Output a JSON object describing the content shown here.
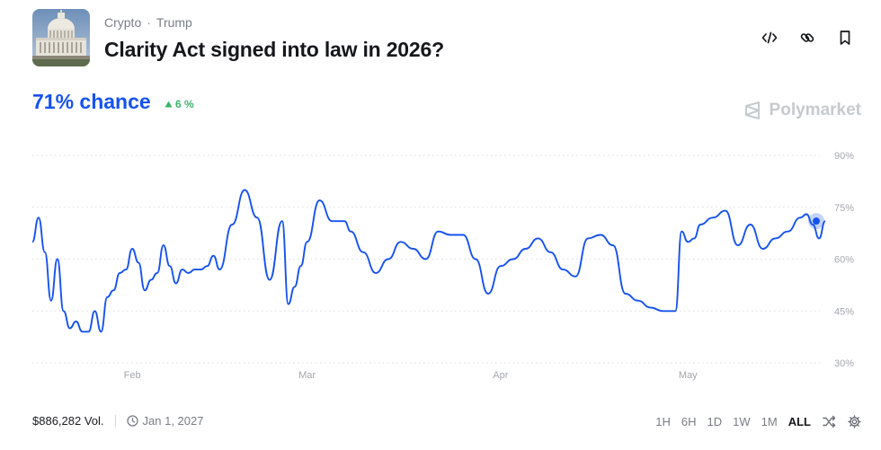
{
  "market": {
    "category": "Crypto",
    "subcategory": "Trump",
    "title": "Clarity Act signed into law in 2026?"
  },
  "odds": {
    "chance_text": "71% chance",
    "delta_text": "6 %",
    "delta_direction": "up"
  },
  "brand": {
    "name": "Polymarket"
  },
  "footer": {
    "volume": "$886,282 Vol.",
    "end_date": "Jan 1, 2027"
  },
  "ranges": [
    "1H",
    "6H",
    "1D",
    "1W",
    "1M",
    "ALL"
  ],
  "active_range": "ALL",
  "colors": {
    "line": "#1652f0",
    "up": "#3db468",
    "grid": "#dcdde0",
    "tick": "#a4a7ad"
  },
  "icons": [
    "embed-icon",
    "link-icon",
    "bookmark-icon",
    "shuffle-icon",
    "settings-icon",
    "clock-icon",
    "triangle-up-icon"
  ],
  "chart_data": {
    "type": "line",
    "x_tick_labels": [
      "Feb",
      "Mar",
      "Apr",
      "May"
    ],
    "y_tick_labels": [
      "90%",
      "75%",
      "60%",
      "45%",
      "30%"
    ],
    "y_ticks": [
      90,
      75,
      60,
      45,
      30
    ],
    "ylim": [
      25,
      95
    ],
    "x_range": [
      "2025-01-16",
      "2025-05-23"
    ],
    "grid": true,
    "series": [
      {
        "color": "#1652f0",
        "x": [
          "2025-01-16",
          "2025-01-17",
          "2025-01-18",
          "2025-01-19",
          "2025-01-20",
          "2025-01-21",
          "2025-01-22",
          "2025-01-23",
          "2025-01-24",
          "2025-01-25",
          "2025-01-26",
          "2025-01-27",
          "2025-01-28",
          "2025-01-29",
          "2025-01-30",
          "2025-01-31",
          "2025-02-01",
          "2025-02-02",
          "2025-02-03",
          "2025-02-04",
          "2025-02-05",
          "2025-02-06",
          "2025-02-07",
          "2025-02-08",
          "2025-02-09",
          "2025-02-10",
          "2025-02-11",
          "2025-02-12",
          "2025-02-13",
          "2025-02-14",
          "2025-02-15",
          "2025-02-17",
          "2025-02-19",
          "2025-02-21",
          "2025-02-23",
          "2025-02-25",
          "2025-02-26",
          "2025-02-27",
          "2025-02-28",
          "2025-03-01",
          "2025-03-03",
          "2025-03-05",
          "2025-03-07",
          "2025-03-08",
          "2025-03-10",
          "2025-03-12",
          "2025-03-14",
          "2025-03-16",
          "2025-03-18",
          "2025-03-20",
          "2025-03-22",
          "2025-03-24",
          "2025-03-26",
          "2025-03-28",
          "2025-03-30",
          "2025-04-01",
          "2025-04-03",
          "2025-04-05",
          "2025-04-07",
          "2025-04-09",
          "2025-04-11",
          "2025-04-13",
          "2025-04-15",
          "2025-04-17",
          "2025-04-19",
          "2025-04-21",
          "2025-04-23",
          "2025-04-25",
          "2025-04-27",
          "2025-04-29",
          "2025-04-30",
          "2025-05-01",
          "2025-05-02",
          "2025-05-03",
          "2025-05-05",
          "2025-05-07",
          "2025-05-09",
          "2025-05-11",
          "2025-05-13",
          "2025-05-15",
          "2025-05-17",
          "2025-05-19",
          "2025-05-20",
          "2025-05-21",
          "2025-05-22",
          "2025-05-23"
        ],
        "values": [
          65,
          72,
          62,
          48,
          60,
          45,
          40,
          42,
          39,
          39,
          45,
          39,
          49,
          51,
          56,
          57,
          63,
          59,
          51,
          54,
          56,
          64,
          58,
          53,
          57,
          56,
          57,
          57,
          58,
          61,
          57,
          70,
          80,
          72,
          54,
          71,
          47,
          52,
          58,
          65,
          77,
          71,
          71,
          68,
          62,
          56,
          60,
          65,
          63,
          60,
          68,
          67,
          67,
          60,
          50,
          58,
          60,
          63,
          66,
          62,
          57,
          55,
          66,
          67,
          64,
          50,
          48,
          46,
          45,
          45,
          68,
          65,
          66,
          70,
          72,
          74,
          64,
          70,
          63,
          66,
          68,
          72,
          73,
          70,
          66,
          71
        ]
      }
    ]
  }
}
